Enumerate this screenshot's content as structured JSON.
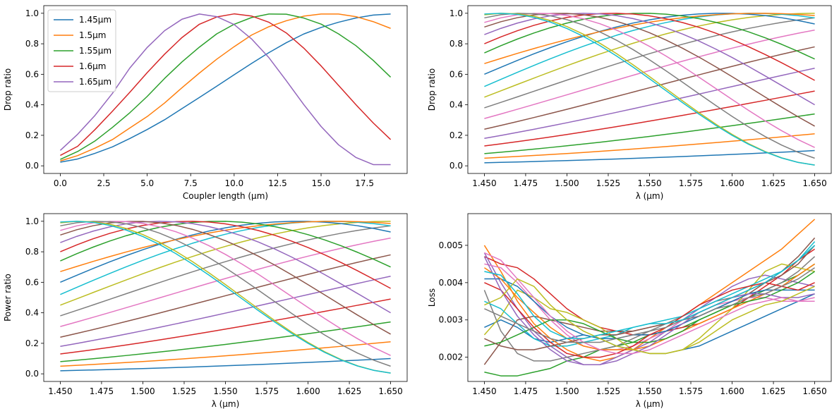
{
  "figure": {
    "background": "#ffffff",
    "palette": [
      "#1f77b4",
      "#ff7f0e",
      "#2ca02c",
      "#d62728",
      "#9467bd",
      "#8c564b",
      "#e377c2",
      "#7f7f7f",
      "#bcbd22",
      "#17becf"
    ]
  },
  "chart_data": [
    {
      "type": "line",
      "xlabel": "Coupler length (µm)",
      "ylabel": "Drop ratio",
      "xlim": [
        -0.95,
        19.95
      ],
      "ylim": [
        -0.05,
        1.05
      ],
      "xticks": [
        0,
        2.5,
        5,
        7.5,
        10,
        12.5,
        15,
        17.5
      ],
      "xtick_labels": [
        "0.0",
        "2.5",
        "5.0",
        "7.5",
        "10.0",
        "12.5",
        "15.0",
        "17.5"
      ],
      "yticks": [
        0,
        0.2,
        0.4,
        0.6,
        0.8,
        1.0
      ],
      "ytick_labels": [
        "0.0",
        "0.2",
        "0.4",
        "0.6",
        "0.8",
        "1.0"
      ],
      "legend_position": "top-left",
      "x": [
        0,
        1,
        2,
        3,
        4,
        5,
        6,
        7,
        8,
        9,
        10,
        11,
        12,
        13,
        14,
        15,
        16,
        17,
        18,
        19
      ],
      "series": [
        {
          "name": "1.45µm",
          "values": [
            0.024,
            0.045,
            0.082,
            0.124,
            0.179,
            0.238,
            0.302,
            0.375,
            0.448,
            0.522,
            0.597,
            0.671,
            0.742,
            0.807,
            0.864,
            0.907,
            0.941,
            0.969,
            0.988,
            0.995
          ]
        },
        {
          "name": "1.5µm",
          "values": [
            0.032,
            0.067,
            0.116,
            0.172,
            0.248,
            0.323,
            0.412,
            0.512,
            0.608,
            0.699,
            0.781,
            0.857,
            0.912,
            0.951,
            0.981,
            0.995,
            0.995,
            0.978,
            0.945,
            0.901
          ]
        },
        {
          "name": "1.55µm",
          "values": [
            0.042,
            0.094,
            0.163,
            0.252,
            0.348,
            0.455,
            0.573,
            0.681,
            0.778,
            0.865,
            0.928,
            0.972,
            0.995,
            0.994,
            0.969,
            0.929,
            0.865,
            0.788,
            0.691,
            0.581
          ]
        },
        {
          "name": "1.6µm",
          "values": [
            0.068,
            0.128,
            0.238,
            0.358,
            0.482,
            0.611,
            0.732,
            0.841,
            0.928,
            0.976,
            0.996,
            0.982,
            0.941,
            0.871,
            0.772,
            0.655,
            0.528,
            0.401,
            0.281,
            0.172
          ]
        },
        {
          "name": "1.65µm",
          "values": [
            0.101,
            0.207,
            0.331,
            0.475,
            0.641,
            0.776,
            0.886,
            0.961,
            0.995,
            0.978,
            0.926,
            0.832,
            0.709,
            0.558,
            0.402,
            0.258,
            0.138,
            0.055,
            0.008,
            0.008
          ]
        }
      ]
    },
    {
      "type": "line",
      "xlabel": "λ (µm)",
      "ylabel": "Drop ratio",
      "xlim": [
        1.44,
        1.66
      ],
      "ylim": [
        -0.05,
        1.05
      ],
      "xticks": [
        1.45,
        1.475,
        1.5,
        1.525,
        1.55,
        1.575,
        1.6,
        1.625,
        1.65
      ],
      "xtick_labels": [
        "1.450",
        "1.475",
        "1.500",
        "1.525",
        "1.550",
        "1.575",
        "1.600",
        "1.625",
        "1.650"
      ],
      "yticks": [
        0,
        0.2,
        0.4,
        0.6,
        0.8,
        1.0
      ],
      "ytick_labels": [
        "0.0",
        "0.2",
        "0.4",
        "0.6",
        "0.8",
        "1.0"
      ],
      "series_note": "20 curves, one per coupler length 0–19 µm",
      "x_range": [
        1.45,
        1.65
      ],
      "series_ends": [
        {
          "start": 0.02,
          "end": 0.1,
          "peak_x": null
        },
        {
          "start": 0.05,
          "end": 0.21,
          "peak_x": null
        },
        {
          "start": 0.08,
          "end": 0.34,
          "peak_x": null
        },
        {
          "start": 0.13,
          "end": 0.49,
          "peak_x": null
        },
        {
          "start": 0.18,
          "end": 0.64,
          "peak_x": null
        },
        {
          "start": 0.24,
          "end": 0.78,
          "peak_x": null
        },
        {
          "start": 0.31,
          "end": 0.89,
          "peak_x": null
        },
        {
          "start": 0.38,
          "end": 0.97,
          "peak_x": null
        },
        {
          "start": 0.45,
          "end": 1.0,
          "peak_x": 1.65
        },
        {
          "start": 0.52,
          "end": 0.97,
          "peak_x": 1.64
        },
        {
          "start": 0.6,
          "end": 0.93,
          "peak_x": 1.62
        },
        {
          "start": 0.67,
          "end": 0.985,
          "peak_x": 1.625
        },
        {
          "start": 0.74,
          "end": 0.7,
          "peak_x": 1.58
        },
        {
          "start": 0.8,
          "end": 0.56,
          "peak_x": 1.545
        },
        {
          "start": 0.86,
          "end": 0.4,
          "peak_x": 1.515
        },
        {
          "start": 0.91,
          "end": 0.26,
          "peak_x": 1.49
        },
        {
          "start": 0.94,
          "end": 0.12,
          "peak_x": 1.47
        },
        {
          "start": 0.97,
          "end": 0.05,
          "peak_x": 1.46
        },
        {
          "start": 0.99,
          "end": 0.005,
          "peak_x": 1.45
        },
        {
          "start": 0.995,
          "end": 0.005,
          "peak_x": 1.45
        }
      ]
    },
    {
      "type": "line",
      "xlabel": "λ (µm)",
      "ylabel": "Power ratio",
      "xlim": [
        1.44,
        1.66
      ],
      "ylim": [
        -0.05,
        1.05
      ],
      "xticks": [
        1.45,
        1.475,
        1.5,
        1.525,
        1.55,
        1.575,
        1.6,
        1.625,
        1.65
      ],
      "xtick_labels": [
        "1.450",
        "1.475",
        "1.500",
        "1.525",
        "1.550",
        "1.575",
        "1.600",
        "1.625",
        "1.650"
      ],
      "yticks": [
        0,
        0.2,
        0.4,
        0.6,
        0.8,
        1.0
      ],
      "ytick_labels": [
        "0.0",
        "0.2",
        "0.4",
        "0.6",
        "0.8",
        "1.0"
      ],
      "series_note": "same curves as the drop ratio panel"
    },
    {
      "type": "line",
      "xlabel": "λ (µm)",
      "ylabel": "Loss",
      "xlim": [
        1.44,
        1.66
      ],
      "ylim": [
        0.00135,
        0.00585
      ],
      "xticks": [
        1.45,
        1.475,
        1.5,
        1.525,
        1.55,
        1.575,
        1.6,
        1.625,
        1.65
      ],
      "xtick_labels": [
        "1.450",
        "1.475",
        "1.500",
        "1.525",
        "1.550",
        "1.575",
        "1.600",
        "1.625",
        "1.650"
      ],
      "yticks": [
        0.002,
        0.003,
        0.004,
        0.005
      ],
      "ytick_labels": [
        "0.002",
        "0.003",
        "0.004",
        "0.005"
      ],
      "x": [
        1.45,
        1.46,
        1.47,
        1.48,
        1.49,
        1.5,
        1.51,
        1.52,
        1.53,
        1.54,
        1.55,
        1.56,
        1.57,
        1.58,
        1.59,
        1.6,
        1.61,
        1.62,
        1.63,
        1.64,
        1.65
      ],
      "series": [
        {
          "values": [
            0.0028,
            0.003,
            0.0028,
            0.0025,
            0.0024,
            0.0025,
            0.0026,
            0.0025,
            0.0023,
            0.0022,
            0.0021,
            0.0021,
            0.0022,
            0.0023,
            0.0025,
            0.0027,
            0.0029,
            0.0031,
            0.0033,
            0.0035,
            0.0037
          ]
        },
        {
          "values": [
            0.005,
            0.0043,
            0.0035,
            0.0029,
            0.0025,
            0.0022,
            0.002,
            0.0019,
            0.002,
            0.0022,
            0.0025,
            0.0028,
            0.0031,
            0.0034,
            0.0037,
            0.004,
            0.0043,
            0.0046,
            0.0049,
            0.0053,
            0.0057
          ]
        },
        {
          "values": [
            0.0016,
            0.0015,
            0.0015,
            0.0016,
            0.0017,
            0.0019,
            0.002,
            0.0022,
            0.0023,
            0.0024,
            0.0026,
            0.0027,
            0.0028,
            0.003,
            0.0032,
            0.0034,
            0.0036,
            0.0038,
            0.004,
            0.0042,
            0.0045
          ]
        },
        {
          "values": [
            0.0047,
            0.0045,
            0.0044,
            0.0041,
            0.0037,
            0.0033,
            0.003,
            0.0028,
            0.0027,
            0.0026,
            0.0026,
            0.0027,
            0.0028,
            0.0029,
            0.0031,
            0.0033,
            0.0036,
            0.0039,
            0.0042,
            0.0046,
            0.0049
          ]
        },
        {
          "values": [
            0.0048,
            0.004,
            0.0033,
            0.0027,
            0.0023,
            0.002,
            0.0018,
            0.0018,
            0.002,
            0.0022,
            0.0024,
            0.0027,
            0.003,
            0.0033,
            0.0036,
            0.0039,
            0.0041,
            0.0042,
            0.0041,
            0.004,
            0.0039
          ]
        },
        {
          "values": [
            0.0018,
            0.0024,
            0.003,
            0.0031,
            0.003,
            0.0029,
            0.0028,
            0.0027,
            0.0027,
            0.0027,
            0.0028,
            0.0029,
            0.003,
            0.0031,
            0.0033,
            0.0035,
            0.0037,
            0.004,
            0.0043,
            0.0047,
            0.0052
          ]
        },
        {
          "values": [
            0.0045,
            0.0044,
            0.004,
            0.0035,
            0.003,
            0.0026,
            0.0023,
            0.0022,
            0.0022,
            0.0023,
            0.0025,
            0.0027,
            0.003,
            0.0032,
            0.0034,
            0.0035,
            0.0036,
            0.0036,
            0.0035,
            0.0035,
            0.0036
          ]
        },
        {
          "values": [
            0.0038,
            0.0027,
            0.0021,
            0.0019,
            0.0019,
            0.002,
            0.0021,
            0.0022,
            0.0023,
            0.0025,
            0.0027,
            0.0029,
            0.0031,
            0.0033,
            0.0035,
            0.0036,
            0.0037,
            0.0038,
            0.004,
            0.0043,
            0.0047
          ]
        },
        {
          "values": [
            0.0026,
            0.0031,
            0.0038,
            0.0036,
            0.0033,
            0.0032,
            0.003,
            0.0028,
            0.0025,
            0.0022,
            0.0021,
            0.0021,
            0.0022,
            0.0025,
            0.0029,
            0.0033,
            0.0038,
            0.0043,
            0.0045,
            0.0044,
            0.0043
          ]
        },
        {
          "values": [
            0.0035,
            0.0033,
            0.0029,
            0.0025,
            0.0023,
            0.0023,
            0.0024,
            0.0025,
            0.0026,
            0.0028,
            0.0029,
            0.003,
            0.0031,
            0.0033,
            0.0035,
            0.0037,
            0.0039,
            0.0041,
            0.0043,
            0.0046,
            0.0051
          ]
        },
        {
          "values": [
            0.0041,
            0.0041,
            0.0039,
            0.0035,
            0.0031,
            0.0028,
            0.0026,
            0.0025,
            0.0025,
            0.0026,
            0.0026,
            0.0027,
            0.0029,
            0.0031,
            0.0033,
            0.0035,
            0.0037,
            0.0038,
            0.0038,
            0.0038,
            0.0038
          ]
        },
        {
          "values": [
            0.0044,
            0.0041,
            0.0036,
            0.0032,
            0.0028,
            0.0025,
            0.0023,
            0.0022,
            0.0022,
            0.0022,
            0.0023,
            0.0025,
            0.0027,
            0.0029,
            0.0031,
            0.0033,
            0.0035,
            0.0037,
            0.0039,
            0.0042,
            0.0045
          ]
        },
        {
          "values": [
            0.0023,
            0.0024,
            0.0026,
            0.0028,
            0.003,
            0.003,
            0.0029,
            0.0027,
            0.0025,
            0.0024,
            0.0024,
            0.0025,
            0.0027,
            0.003,
            0.0032,
            0.0034,
            0.0035,
            0.0036,
            0.0038,
            0.004,
            0.0043
          ]
        },
        {
          "values": [
            0.004,
            0.0038,
            0.0033,
            0.0028,
            0.0024,
            0.0021,
            0.002,
            0.002,
            0.0021,
            0.0023,
            0.0026,
            0.0028,
            0.0031,
            0.0034,
            0.0036,
            0.0038,
            0.0039,
            0.004,
            0.0039,
            0.0038,
            0.004
          ]
        },
        {
          "values": [
            0.0047,
            0.0038,
            0.0031,
            0.0026,
            0.0022,
            0.0019,
            0.0018,
            0.0018,
            0.0019,
            0.0021,
            0.0023,
            0.0026,
            0.0029,
            0.0032,
            0.0034,
            0.0036,
            0.0037,
            0.0037,
            0.0036,
            0.0036,
            0.0037
          ]
        },
        {
          "values": [
            0.0025,
            0.0023,
            0.0022,
            0.0022,
            0.0023,
            0.0024,
            0.0025,
            0.0026,
            0.0026,
            0.0027,
            0.0028,
            0.0029,
            0.003,
            0.0032,
            0.0034,
            0.0036,
            0.0038,
            0.004,
            0.0042,
            0.0045,
            0.005
          ]
        },
        {
          "values": [
            0.0048,
            0.0046,
            0.0041,
            0.0036,
            0.0031,
            0.0027,
            0.0024,
            0.0022,
            0.0021,
            0.0021,
            0.0022,
            0.0024,
            0.0026,
            0.0028,
            0.003,
            0.0032,
            0.0034,
            0.0035,
            0.0036,
            0.0035,
            0.0035
          ]
        },
        {
          "values": [
            0.0033,
            0.0031,
            0.0029,
            0.0027,
            0.0025,
            0.0024,
            0.0024,
            0.0024,
            0.0025,
            0.0026,
            0.0027,
            0.0028,
            0.003,
            0.0031,
            0.0033,
            0.0034,
            0.0036,
            0.0037,
            0.0039,
            0.0041,
            0.0044
          ]
        },
        {
          "values": [
            0.0034,
            0.0036,
            0.0041,
            0.0039,
            0.0034,
            0.003,
            0.0027,
            0.0025,
            0.0023,
            0.0022,
            0.0021,
            0.0021,
            0.0022,
            0.0024,
            0.0027,
            0.003,
            0.0032,
            0.0034,
            0.0035,
            0.0037,
            0.0039
          ]
        },
        {
          "values": [
            0.0043,
            0.0042,
            0.0037,
            0.0031,
            0.0027,
            0.0025,
            0.0025,
            0.0026,
            0.0027,
            0.0028,
            0.0029,
            0.0029,
            0.003,
            0.0032,
            0.0034,
            0.0036,
            0.0038,
            0.004,
            0.0043,
            0.0046,
            0.005
          ]
        }
      ]
    }
  ]
}
